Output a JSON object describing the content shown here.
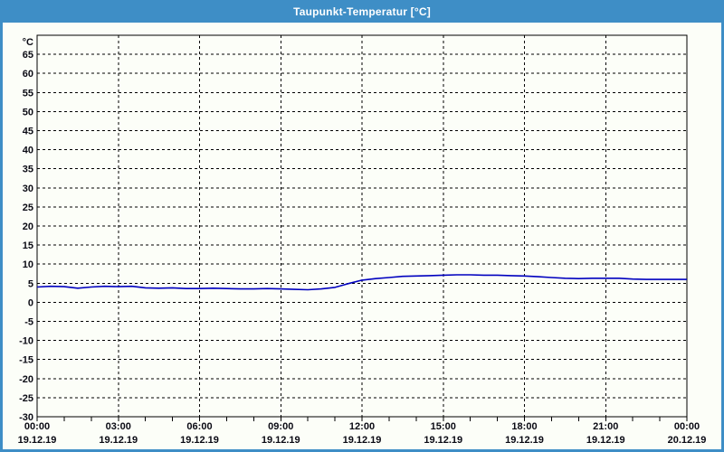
{
  "window": {
    "title": "Taupunkt-Temperatur [°C]",
    "colors": {
      "titlebar": "#3e8ec6",
      "frame": "#3e8ec6",
      "title_text": "#ffffff",
      "content_background": "#fcfef8",
      "axis": "#000000",
      "label_text": "#0a0a14",
      "line": "#0000bf"
    }
  },
  "chart_data": {
    "type": "line",
    "title": "Taupunkt-Temperatur [°C]",
    "ylabel": "°C",
    "xlabel": "",
    "ylim": [
      -30,
      70
    ],
    "y_tick_step": 5,
    "y_ticks": [
      65,
      60,
      55,
      50,
      45,
      40,
      35,
      30,
      25,
      20,
      15,
      10,
      5,
      0,
      -5,
      -10,
      -15,
      -20,
      -25,
      -30
    ],
    "grid": "dashed",
    "legend": "none",
    "x_axis": {
      "range_hours": [
        0,
        24
      ],
      "minor_tick_hours": 1,
      "major_ticks": [
        {
          "hour": 0,
          "time": "00:00",
          "date": "19.12.19"
        },
        {
          "hour": 3,
          "time": "03:00",
          "date": "19.12.19"
        },
        {
          "hour": 6,
          "time": "06:00",
          "date": "19.12.19"
        },
        {
          "hour": 9,
          "time": "09:00",
          "date": "19.12.19"
        },
        {
          "hour": 12,
          "time": "12:00",
          "date": "19.12.19"
        },
        {
          "hour": 15,
          "time": "15:00",
          "date": "19.12.19"
        },
        {
          "hour": 18,
          "time": "18:00",
          "date": "19.12.19"
        },
        {
          "hour": 21,
          "time": "21:00",
          "date": "19.12.19"
        },
        {
          "hour": 24,
          "time": "00:00",
          "date": "20.12.19"
        }
      ]
    },
    "series": [
      {
        "name": "Taupunkt-Temperatur",
        "color": "#0000bf",
        "x_hours": [
          0,
          0.5,
          1,
          1.5,
          2,
          2.5,
          3,
          3.5,
          4,
          4.5,
          5,
          5.5,
          6,
          6.5,
          7,
          7.5,
          8,
          8.5,
          9,
          9.5,
          10,
          10.5,
          11,
          11.5,
          12,
          12.5,
          13,
          13.5,
          14,
          14.5,
          15,
          15.5,
          16,
          16.5,
          17,
          17.5,
          18,
          18.5,
          19,
          19.5,
          20,
          20.5,
          21,
          21.5,
          22,
          22.5,
          23,
          23.5,
          24
        ],
        "values": [
          4.0,
          4.2,
          4.1,
          3.7,
          4.0,
          4.2,
          4.1,
          4.2,
          3.8,
          3.7,
          3.8,
          3.6,
          3.6,
          3.7,
          3.6,
          3.5,
          3.5,
          3.6,
          3.5,
          3.4,
          3.3,
          3.5,
          3.9,
          4.9,
          5.8,
          6.2,
          6.5,
          6.8,
          6.9,
          7.0,
          7.1,
          7.2,
          7.2,
          7.1,
          7.1,
          7.0,
          6.9,
          6.7,
          6.5,
          6.3,
          6.2,
          6.3,
          6.3,
          6.3,
          6.1,
          6.0,
          6.0,
          6.0,
          6.0
        ]
      }
    ]
  }
}
